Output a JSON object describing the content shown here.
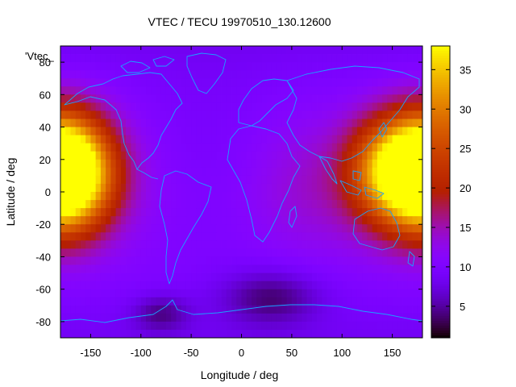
{
  "chart_data": {
    "type": "heatmap",
    "title": "VTEC / TECU 19970510_130.12600",
    "xlabel": "Longitude / deg",
    "ylabel": "Latitude / deg",
    "xlim": [
      -180,
      180
    ],
    "ylim": [
      -90,
      90
    ],
    "xticks": [
      -150,
      -100,
      -50,
      0,
      50,
      100,
      150
    ],
    "yticks": [
      80,
      60,
      40,
      20,
      0,
      -20,
      -40,
      -60,
      -80
    ],
    "colorbar": {
      "range": [
        1,
        38
      ],
      "ticks": [
        5,
        10,
        15,
        20,
        25,
        30,
        35
      ]
    },
    "key_label": "'Vtec_",
    "grid": false,
    "colormap": "black-purple-red-yellow",
    "features": [
      {
        "lon": -175,
        "lat": 12,
        "sx": 30,
        "sy": 24,
        "amp": 27
      },
      {
        "lon": 170,
        "lat": 12,
        "sx": 40,
        "sy": 24,
        "amp": 20
      },
      {
        "lon": 140,
        "lat": 15,
        "sx": 25,
        "sy": 20,
        "amp": 6
      },
      {
        "lon": 60,
        "lat": 5,
        "sx": 40,
        "sy": 30,
        "amp": 2
      },
      {
        "lon": 30,
        "lat": -65,
        "sx": 35,
        "sy": 12,
        "amp": -6
      },
      {
        "lon": -80,
        "lat": -75,
        "sx": 20,
        "sy": 8,
        "amp": -5
      },
      {
        "lon": -30,
        "lat": 10,
        "sx": 50,
        "sy": 40,
        "amp": -2
      }
    ]
  }
}
